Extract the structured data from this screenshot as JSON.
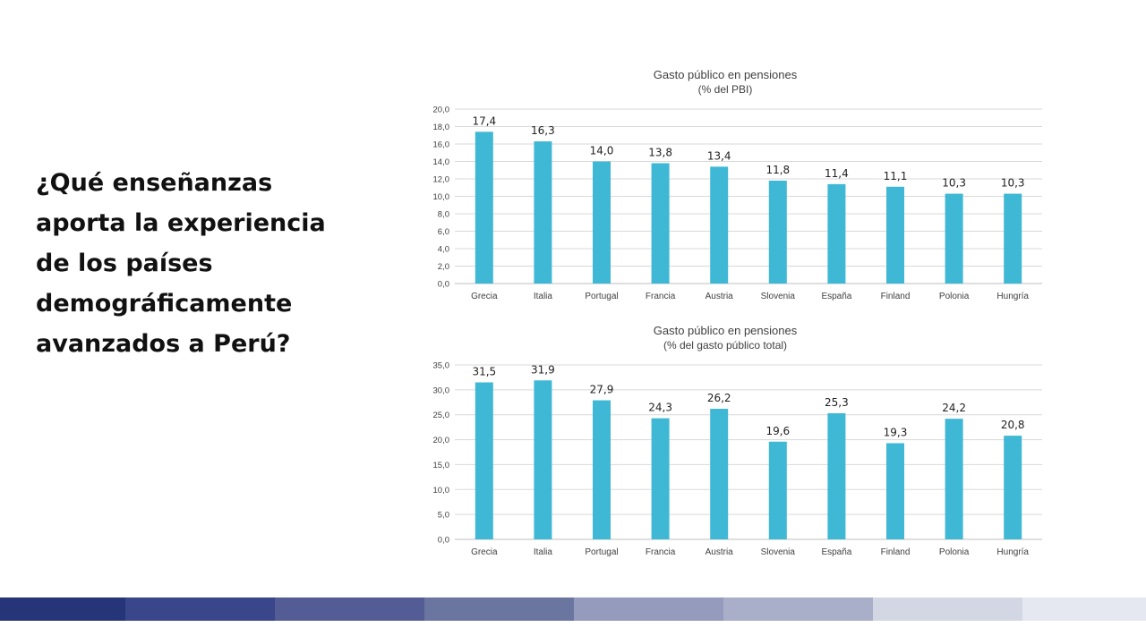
{
  "slide": {
    "question": "¿Qué enseñanzas aporta la experiencia de los países demográficamente avanzados a Perú?"
  },
  "colors": {
    "bar": "#3eb8d4",
    "grid": "#d9d9d9",
    "label": "#404040",
    "footer": [
      "#263478",
      "#39468a",
      "#545c95",
      "#6a75a0",
      "#949bbd",
      "#a9aec9",
      "#d3d7e3",
      "#e6e8f1"
    ]
  },
  "chart_data": [
    {
      "type": "bar",
      "title": "Gasto público en pensiones",
      "subtitle": "(% del PBI)",
      "categories": [
        "Grecia",
        "Italia",
        "Portugal",
        "Francia",
        "Austria",
        "Slovenia",
        "España",
        "Finland",
        "Polonia",
        "Hungría"
      ],
      "values": [
        17.4,
        16.3,
        14.0,
        13.8,
        13.4,
        11.8,
        11.4,
        11.1,
        10.3,
        10.3
      ],
      "data_labels": [
        "17,4",
        "16,3",
        "14,0",
        "13,8",
        "13,4",
        "11,8",
        "11,4",
        "11,1",
        "10,3",
        "10,3"
      ],
      "ylim": [
        0,
        20
      ],
      "yticks": [
        "0,0",
        "2,0",
        "4,0",
        "6,0",
        "8,0",
        "10,0",
        "12,0",
        "14,0",
        "16,0",
        "18,0",
        "20,0"
      ],
      "xlabel": "",
      "ylabel": "",
      "grid": true
    },
    {
      "type": "bar",
      "title": "Gasto público en pensiones",
      "subtitle": "(% del gasto público total)",
      "categories": [
        "Grecia",
        "Italia",
        "Portugal",
        "Francia",
        "Austria",
        "Slovenia",
        "España",
        "Finland",
        "Polonia",
        "Hungría"
      ],
      "values": [
        31.5,
        31.9,
        27.9,
        24.3,
        26.2,
        19.6,
        25.3,
        19.3,
        24.2,
        20.8
      ],
      "data_labels": [
        "31,5",
        "31,9",
        "27,9",
        "24,3",
        "26,2",
        "19,6",
        "25,3",
        "19,3",
        "24,2",
        "20,8"
      ],
      "ylim": [
        0,
        35
      ],
      "yticks": [
        "0,0",
        "5,0",
        "10,0",
        "15,0",
        "20,0",
        "25,0",
        "30,0",
        "35,0"
      ],
      "xlabel": "",
      "ylabel": "",
      "grid": true
    }
  ]
}
